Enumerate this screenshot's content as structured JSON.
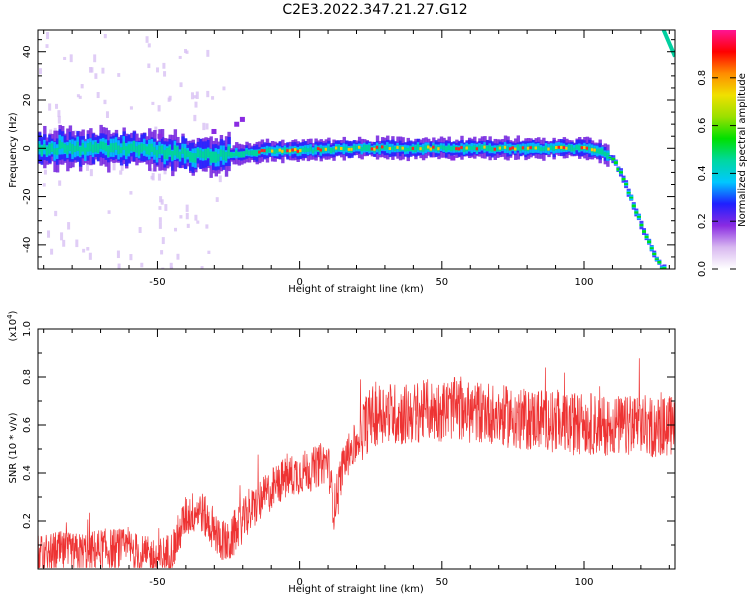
{
  "title": "C2E3.2022.347.21.27.G12",
  "chart_data": [
    {
      "type": "heatmap",
      "xlabel": "Height of straight line (km)",
      "ylabel": "Frequency (Hz)",
      "xlim": [
        -92,
        132
      ],
      "ylim": [
        -50,
        49
      ],
      "xticks": [
        -50,
        0,
        50,
        100
      ],
      "yticks": [
        -40,
        -20,
        0,
        20,
        40
      ],
      "colorbar": {
        "label": "Normalized spectral amplitude",
        "range": [
          0.0,
          1.0
        ],
        "ticks": [
          0.0,
          0.2,
          0.4,
          0.6,
          0.8
        ],
        "colormap": [
          "#ffffff",
          "#d8b8f0",
          "#8a2be2",
          "#1f1fff",
          "#00c8ff",
          "#00d8a0",
          "#00e000",
          "#9ae000",
          "#f0e000",
          "#ff8c00",
          "#ff0000",
          "#ff1493"
        ]
      },
      "ridge": [
        {
          "x": -92,
          "y": 0
        },
        {
          "x": -60,
          "y": 0
        },
        {
          "x": -45,
          "y": -2
        },
        {
          "x": -30,
          "y": -3
        },
        {
          "x": -10,
          "y": -1
        },
        {
          "x": 0,
          "y": -1
        },
        {
          "x": 20,
          "y": 0
        },
        {
          "x": 50,
          "y": 0
        },
        {
          "x": 80,
          "y": 0
        },
        {
          "x": 100,
          "y": 0
        },
        {
          "x": 106,
          "y": -1
        },
        {
          "x": 110,
          "y": -5
        },
        {
          "x": 113,
          "y": -12
        },
        {
          "x": 117,
          "y": -24
        },
        {
          "x": 121,
          "y": -36
        },
        {
          "x": 125,
          "y": -46
        },
        {
          "x": 127,
          "y": -50
        }
      ],
      "upper_branch": [
        {
          "x": 128,
          "y": 49
        },
        {
          "x": 132,
          "y": 38
        }
      ]
    },
    {
      "type": "line",
      "xlabel": "Height of straight line (km)",
      "ylabel": "SNR (10 * v/v)",
      "y_multiplier": "(x10",
      "y_multiplier_exp": "4",
      "y_multiplier_close": ")",
      "xlim": [
        -92,
        132
      ],
      "ylim": [
        0.0,
        1.0
      ],
      "xticks": [
        -50,
        0,
        50,
        100
      ],
      "yticks": [
        0.2,
        0.4,
        0.6,
        0.8,
        1.0
      ],
      "color": "#ee3333",
      "series": [
        {
          "x": [
            -92,
            -85,
            -80,
            -70,
            -60,
            -55,
            -50,
            -45,
            -40,
            -35,
            -30,
            -25,
            -20,
            -15,
            -10,
            -5,
            0,
            5,
            8,
            10,
            12,
            15,
            18,
            20,
            22,
            25,
            30,
            35,
            40,
            45,
            50,
            55,
            60,
            65,
            70,
            75,
            80,
            85,
            90,
            95,
            100,
            105,
            110,
            115,
            120,
            125,
            132
          ],
          "y": [
            0.05,
            0.07,
            0.06,
            0.08,
            0.08,
            0.05,
            0.04,
            0.07,
            0.22,
            0.25,
            0.15,
            0.1,
            0.2,
            0.27,
            0.33,
            0.38,
            0.4,
            0.42,
            0.44,
            0.45,
            0.25,
            0.42,
            0.5,
            0.52,
            0.58,
            0.63,
            0.66,
            0.64,
            0.65,
            0.66,
            0.66,
            0.67,
            0.65,
            0.66,
            0.64,
            0.63,
            0.62,
            0.63,
            0.62,
            0.6,
            0.61,
            0.6,
            0.6,
            0.59,
            0.6,
            0.59,
            0.6
          ]
        }
      ]
    }
  ]
}
